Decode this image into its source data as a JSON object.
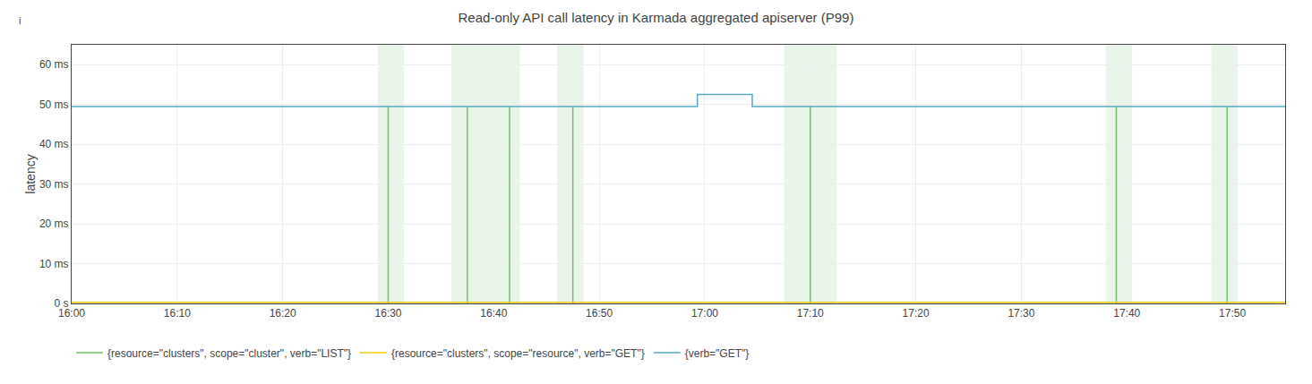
{
  "chart_data": {
    "type": "line",
    "title": "Read-only API call latency in Karmada aggregated apiserver (P99)",
    "y_label": "latency",
    "xlim": [
      0,
      115
    ],
    "xticks": [
      {
        "value": 0,
        "label": "16:00"
      },
      {
        "value": 10,
        "label": "16:10"
      },
      {
        "value": 20,
        "label": "16:20"
      },
      {
        "value": 30,
        "label": "16:30"
      },
      {
        "value": 40,
        "label": "16:40"
      },
      {
        "value": 50,
        "label": "16:50"
      },
      {
        "value": 60,
        "label": "17:00"
      },
      {
        "value": 70,
        "label": "17:10"
      },
      {
        "value": 80,
        "label": "17:20"
      },
      {
        "value": 90,
        "label": "17:30"
      },
      {
        "value": 100,
        "label": "17:40"
      },
      {
        "value": 110,
        "label": "17:50"
      }
    ],
    "ylim": [
      0,
      65
    ],
    "yticks": [
      {
        "value": 0,
        "label": "0 s"
      },
      {
        "value": 10,
        "label": "10 ms"
      },
      {
        "value": 20,
        "label": "20 ms"
      },
      {
        "value": 30,
        "label": "30 ms"
      },
      {
        "value": 40,
        "label": "40 ms"
      },
      {
        "value": 50,
        "label": "50 ms"
      },
      {
        "value": 60,
        "label": "60 ms"
      }
    ],
    "grid": true,
    "legend": "lower left",
    "annotations": [
      "i"
    ],
    "highlight_regions": [
      {
        "x0": 29.0,
        "x1": 31.5
      },
      {
        "x0": 36.0,
        "x1": 42.5
      },
      {
        "x0": 46.0,
        "x1": 48.5
      },
      {
        "x0": 67.5,
        "x1": 72.5
      },
      {
        "x0": 98.0,
        "x1": 100.5
      },
      {
        "x0": 108.0,
        "x1": 110.5
      }
    ],
    "series": [
      {
        "name": "{resource=\"clusters\", scope=\"cluster\", verb=\"LIST\"}",
        "color": "#73bf69",
        "x": [
          30.0,
          30.0,
          30.0,
          37.5,
          37.5,
          37.5,
          41.5,
          41.5,
          41.5,
          47.5,
          47.5,
          47.5,
          70.0,
          70.0,
          70.0,
          99.0,
          99.0,
          99.0,
          109.5,
          109.5
        ],
        "values": [
          0,
          49.5,
          null,
          0,
          49.5,
          null,
          0,
          49.5,
          null,
          0,
          49.5,
          null,
          0,
          49.5,
          null,
          0,
          49.5,
          null,
          0,
          49.5
        ]
      },
      {
        "name": "{resource=\"clusters\", scope=\"resource\", verb=\"GET\"}",
        "color": "#f2cc0c",
        "x": [
          0,
          115
        ],
        "values": [
          0.3,
          0.3
        ]
      },
      {
        "name": "{verb=\"GET\"}",
        "color": "#56a9c2",
        "x": [
          0,
          59.0,
          59.0,
          59.3,
          59.3,
          64.5,
          64.5,
          65.0,
          65.0,
          115
        ],
        "values": [
          49.5,
          49.5,
          49.5,
          49.5,
          52.5,
          52.5,
          49.5,
          49.5,
          49.5,
          49.5
        ]
      }
    ]
  }
}
